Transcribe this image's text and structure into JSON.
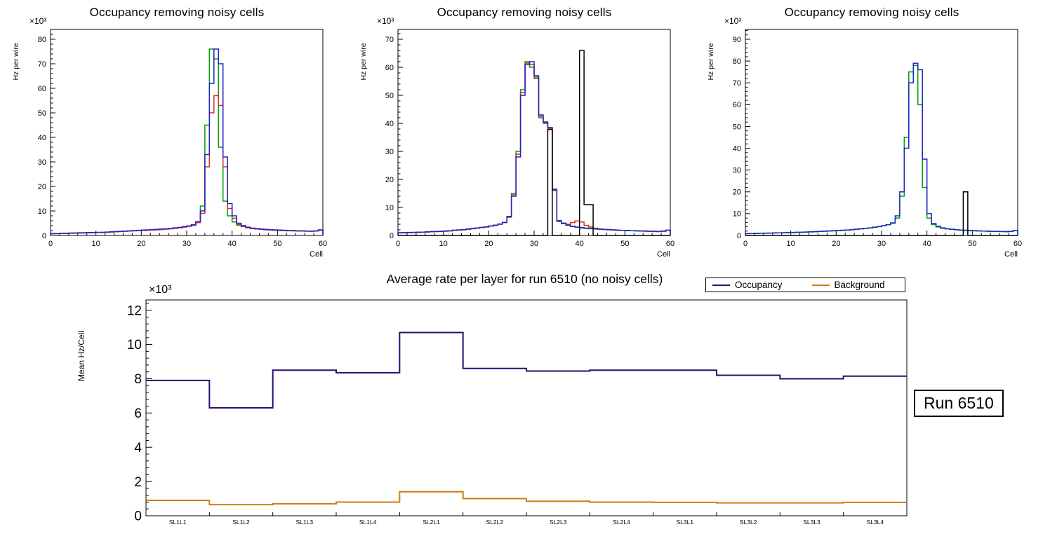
{
  "run_box": {
    "label": "Run 6510"
  },
  "chart_data": [
    {
      "type": "histogram",
      "title": "Occupancy removing noisy cells",
      "xlabel": "Cell",
      "ylabel": "Hz per wire",
      "y_exponent": "×10³",
      "xlim": [
        0,
        60
      ],
      "ylim": [
        0,
        84
      ],
      "xticks_major": 10,
      "xticks_minor": 2,
      "yticks_major": 10,
      "yticks_minor": 2,
      "series": [
        {
          "name": "green",
          "color": "#00a000",
          "values": [
            0.7,
            0.8,
            0.8,
            0.9,
            0.9,
            1.0,
            1.0,
            1.1,
            1.1,
            1.2,
            1.2,
            1.3,
            1.3,
            1.4,
            1.5,
            1.6,
            1.7,
            1.8,
            1.9,
            2.0,
            2.1,
            2.2,
            2.3,
            2.4,
            2.5,
            2.6,
            2.8,
            3.0,
            3.2,
            3.5,
            3.8,
            4.3,
            5.5,
            12,
            45,
            76,
            72,
            36,
            14,
            8,
            5.5,
            4.2,
            3.6,
            3.2,
            2.9,
            2.7,
            2.5,
            2.4,
            2.3,
            2.2,
            2.1,
            2.0,
            2.0,
            1.9,
            1.9,
            1.8,
            1.8,
            1.7,
            1.8,
            2.2
          ]
        },
        {
          "name": "red",
          "color": "#d42e20",
          "values": [
            0.7,
            0.7,
            0.8,
            0.8,
            0.9,
            0.9,
            1.0,
            1.0,
            1.1,
            1.1,
            1.2,
            1.2,
            1.3,
            1.4,
            1.5,
            1.6,
            1.7,
            1.8,
            1.9,
            2.0,
            2.0,
            2.1,
            2.2,
            2.3,
            2.4,
            2.6,
            2.7,
            2.9,
            3.1,
            3.4,
            3.7,
            4.1,
            5.2,
            9,
            28,
            50,
            57,
            53,
            28,
            11,
            7,
            4.5,
            3.7,
            3.1,
            2.8,
            2.6,
            2.5,
            2.3,
            2.2,
            2.1,
            2.0,
            2.0,
            1.9,
            1.9,
            1.8,
            1.8,
            1.7,
            1.7,
            1.8,
            2.1
          ]
        },
        {
          "name": "blue",
          "color": "#2422c8",
          "values": [
            0.8,
            0.8,
            0.9,
            0.9,
            1.0,
            1.0,
            1.1,
            1.1,
            1.2,
            1.2,
            1.3,
            1.3,
            1.4,
            1.5,
            1.6,
            1.7,
            1.8,
            1.9,
            2.0,
            2.1,
            2.2,
            2.3,
            2.4,
            2.5,
            2.6,
            2.7,
            2.9,
            3.1,
            3.3,
            3.6,
            3.9,
            4.4,
            5.6,
            10,
            33,
            62,
            76,
            70,
            32,
            13,
            8,
            5,
            4,
            3.4,
            3.0,
            2.8,
            2.6,
            2.5,
            2.4,
            2.3,
            2.2,
            2.1,
            2.0,
            2.0,
            1.9,
            1.9,
            1.8,
            1.8,
            1.9,
            2.3
          ]
        }
      ]
    },
    {
      "type": "histogram",
      "title": "Occupancy removing noisy cells",
      "xlabel": "Cell",
      "ylabel": "Hz per wire",
      "y_exponent": "×10³",
      "xlim": [
        0,
        60
      ],
      "ylim": [
        0,
        73.5
      ],
      "xticks_major": 10,
      "xticks_minor": 2,
      "yticks_major": 10,
      "yticks_minor": 2,
      "series": [
        {
          "name": "green",
          "color": "#00a000",
          "values": [
            0.9,
            1.0,
            1.0,
            1.1,
            1.1,
            1.2,
            1.2,
            1.3,
            1.4,
            1.5,
            1.6,
            1.7,
            1.8,
            1.9,
            2.1,
            2.2,
            2.4,
            2.6,
            2.8,
            3.0,
            3.3,
            3.6,
            4.0,
            4.6,
            6.5,
            15,
            30,
            52,
            62,
            60,
            56,
            42,
            40,
            38.5,
            16,
            5,
            4.2,
            3.6,
            3.2,
            2.9,
            2.7,
            2.5,
            2.4,
            2.3,
            2.2,
            2.1,
            2.0,
            1.9,
            1.8,
            1.8,
            1.7,
            1.7,
            1.6,
            1.6,
            1.5,
            1.5,
            1.4,
            1.4,
            1.5,
            1.8
          ]
        },
        {
          "name": "red",
          "color": "#d42e20",
          "values": [
            0.9,
            1.0,
            1.0,
            1.1,
            1.1,
            1.2,
            1.2,
            1.3,
            1.4,
            1.4,
            1.5,
            1.6,
            1.8,
            1.9,
            2.0,
            2.2,
            2.4,
            2.6,
            2.8,
            3.0,
            3.3,
            3.6,
            4.0,
            4.6,
            6.6,
            14.5,
            29,
            51,
            61.5,
            61,
            56.5,
            42.5,
            40.2,
            38.2,
            16.2,
            5.1,
            4.3,
            4.0,
            4.6,
            5.2,
            4.8,
            3.6,
            3.0,
            2.6,
            2.3,
            2.2,
            2.1,
            2.0,
            1.9,
            1.8,
            1.8,
            1.7,
            1.7,
            1.6,
            1.6,
            1.5,
            1.5,
            1.4,
            1.5,
            1.8
          ]
        },
        {
          "name": "blue",
          "color": "#2422c8",
          "values": [
            1.0,
            1.0,
            1.1,
            1.1,
            1.2,
            1.2,
            1.3,
            1.4,
            1.4,
            1.5,
            1.6,
            1.7,
            1.9,
            2.0,
            2.1,
            2.3,
            2.5,
            2.7,
            2.9,
            3.1,
            3.4,
            3.7,
            4.1,
            4.7,
            6.8,
            14,
            28,
            50,
            61,
            62,
            57,
            43,
            40.5,
            38.5,
            16.5,
            5.3,
            4.4,
            3.7,
            3.3,
            3.0,
            2.8,
            2.6,
            2.5,
            2.4,
            2.3,
            2.2,
            2.1,
            2.0,
            1.9,
            1.8,
            1.8,
            1.7,
            1.7,
            1.6,
            1.6,
            1.5,
            1.5,
            1.4,
            1.6,
            1.9
          ]
        },
        {
          "name": "black",
          "color": "#000000",
          "values": [
            0,
            0,
            0,
            0,
            0,
            0,
            0,
            0,
            0,
            0,
            0,
            0,
            0,
            0,
            0,
            0,
            0,
            0,
            0,
            0,
            0,
            0,
            0,
            0,
            0,
            0,
            0,
            0,
            0,
            0,
            0,
            0,
            0,
            37.8,
            0,
            0,
            0,
            0,
            0,
            0,
            66,
            11,
            11,
            0,
            0,
            0,
            0,
            0,
            0,
            0,
            0,
            0,
            0,
            0,
            0,
            0,
            0,
            0,
            0,
            0
          ]
        }
      ]
    },
    {
      "type": "histogram",
      "title": "Occupancy removing noisy cells",
      "xlabel": "Cell",
      "ylabel": "Hz per wire",
      "y_exponent": "×10³",
      "xlim": [
        0,
        60
      ],
      "ylim": [
        0,
        94.5
      ],
      "xticks_major": 10,
      "xticks_minor": 2,
      "yticks_major": 10,
      "yticks_minor": 2,
      "series": [
        {
          "name": "green",
          "color": "#00a000",
          "values": [
            0.8,
            0.9,
            0.9,
            1.0,
            1.0,
            1.1,
            1.1,
            1.2,
            1.2,
            1.3,
            1.3,
            1.4,
            1.5,
            1.5,
            1.6,
            1.7,
            1.8,
            1.9,
            2.0,
            2.1,
            2.2,
            2.3,
            2.4,
            2.6,
            2.8,
            3.0,
            3.2,
            3.4,
            3.7,
            4.0,
            4.4,
            4.9,
            5.6,
            8,
            18,
            45,
            75,
            78,
            60,
            22,
            8,
            5,
            3.9,
            3.3,
            3.0,
            2.8,
            2.6,
            2.4,
            2.3,
            2.2,
            2.1,
            2.1,
            2.0,
            1.9,
            1.9,
            1.8,
            1.8,
            1.7,
            1.8,
            2.2
          ]
        },
        {
          "name": "blue",
          "color": "#2422c8",
          "values": [
            0.9,
            0.9,
            1.0,
            1.0,
            1.1,
            1.1,
            1.2,
            1.2,
            1.3,
            1.4,
            1.4,
            1.5,
            1.5,
            1.6,
            1.7,
            1.8,
            1.9,
            2.0,
            2.1,
            2.2,
            2.3,
            2.4,
            2.5,
            2.7,
            2.9,
            3.1,
            3.3,
            3.5,
            3.8,
            4.1,
            4.5,
            5.0,
            5.8,
            9,
            20,
            40,
            70,
            79,
            76,
            35,
            10,
            5.5,
            4.2,
            3.5,
            3.1,
            2.9,
            2.7,
            2.5,
            2.4,
            2.3,
            2.2,
            2.1,
            2.0,
            2.0,
            1.9,
            1.9,
            1.8,
            1.8,
            1.9,
            2.3
          ]
        },
        {
          "name": "black",
          "color": "#000000",
          "values": [
            0,
            0,
            0,
            0,
            0,
            0,
            0,
            0,
            0,
            0,
            0,
            0,
            0,
            0,
            0,
            0,
            0,
            0,
            0,
            0,
            0,
            0,
            0,
            0,
            0,
            0,
            0,
            0,
            0,
            0,
            0,
            0,
            0,
            0,
            0,
            0,
            0,
            0,
            0,
            0,
            0,
            0,
            0,
            0,
            0,
            0,
            0,
            0,
            20,
            0,
            0,
            0,
            0,
            0,
            0,
            0,
            0,
            0,
            0,
            0
          ]
        }
      ]
    },
    {
      "type": "step-line",
      "title": "Average rate per layer for run 6510 (no noisy cells)",
      "ylabel": "Mean Hz/Cell",
      "y_exponent": "×10³",
      "xlim": [
        0,
        12
      ],
      "ylim": [
        0,
        12.6
      ],
      "yticks_major": 2,
      "yticks_minor": 0.4,
      "legend_position": "top-right",
      "categories": [
        "SL1L1",
        "SL1L2",
        "SL1L3",
        "SL1L4",
        "SL2L1",
        "SL2L2",
        "SL2L3",
        "SL2L4",
        "SL3L1",
        "SL3L2",
        "SL3L3",
        "SL3L4"
      ],
      "series": [
        {
          "name": "Occupancy",
          "color": "#2e0b6e",
          "values": [
            7.9,
            6.3,
            8.5,
            8.35,
            10.7,
            8.6,
            8.45,
            8.5,
            8.5,
            8.2,
            8.0,
            8.15
          ]
        },
        {
          "name": "Background",
          "color": "#cf7c12",
          "values": [
            0.9,
            0.65,
            0.7,
            0.8,
            1.4,
            1.0,
            0.85,
            0.8,
            0.78,
            0.75,
            0.75,
            0.78
          ]
        }
      ]
    }
  ]
}
